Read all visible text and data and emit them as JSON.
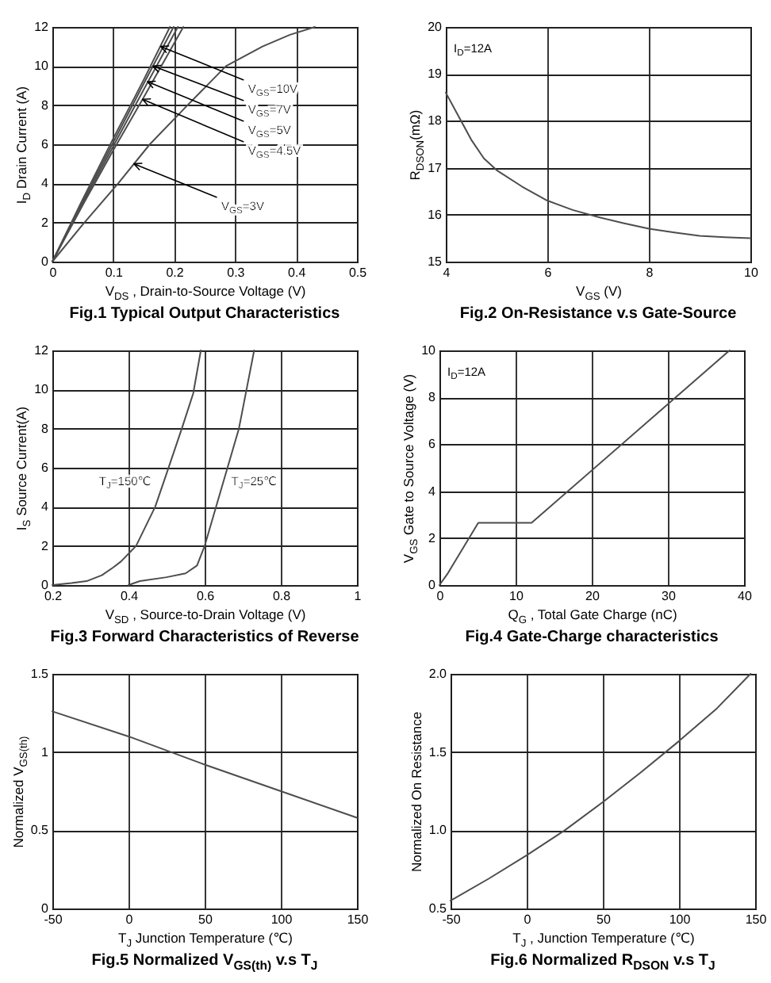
{
  "chart_data": [
    {
      "type": "line",
      "title": "Fig.1 Typical Output Characteristics",
      "xlabel": "V$_{DS}$ , Drain-to-Source Voltage (V)",
      "ylabel": "I$_{D}$ Drain Current (A)",
      "xlim": [
        0,
        0.5
      ],
      "xticks": [
        0,
        0.1,
        0.2,
        0.3,
        0.4,
        0.5
      ],
      "ylim": [
        0,
        12
      ],
      "yticks": [
        0,
        2,
        4,
        6,
        8,
        10,
        12
      ],
      "grid": true,
      "series": [
        {
          "color": "#4d4d4d",
          "x": [
            0,
            0.05,
            0.1,
            0.15,
            0.193
          ],
          "values": [
            0,
            3.2,
            6.3,
            9.3,
            12
          ]
        },
        {
          "color": "#4d4d4d",
          "x": [
            0,
            0.05,
            0.1,
            0.15,
            0.199
          ],
          "values": [
            0,
            3.1,
            6.1,
            9.1,
            12
          ]
        },
        {
          "color": "#4d4d4d",
          "x": [
            0,
            0.05,
            0.1,
            0.15,
            0.206
          ],
          "values": [
            0,
            3.0,
            5.9,
            8.8,
            12
          ]
        },
        {
          "color": "#4d4d4d",
          "x": [
            0,
            0.05,
            0.1,
            0.15,
            0.215
          ],
          "values": [
            0,
            2.9,
            5.7,
            8.4,
            12
          ]
        },
        {
          "color": "#4d4d4d",
          "x": [
            0,
            0.05,
            0.108,
            0.16,
            0.222,
            0.285,
            0.345,
            0.39,
            0.431
          ],
          "values": [
            0,
            1.9,
            4,
            6,
            8,
            10,
            11,
            11.6,
            12
          ]
        }
      ],
      "annotations": [
        {
          "text": "V$_{GS}$=10V",
          "x": 0.178,
          "y": 11
        },
        {
          "text": "V$_{GS}$=7V",
          "x": 0.165,
          "y": 10
        },
        {
          "text": "V$_{GS}$=5V",
          "x": 0.156,
          "y": 9.2
        },
        {
          "text": "V$_{GS}$=4.5V",
          "x": 0.148,
          "y": 8.3
        },
        {
          "text": "V$_{GS}$=3V",
          "x": 0.134,
          "y": 5
        }
      ]
    },
    {
      "type": "line",
      "title": "Fig.2 On-Resistance v.s Gate-Source",
      "xlabel": "V$_{GS}$ (V)",
      "ylabel": "R$_{DSON}$(mΩ)",
      "xlim": [
        4,
        10
      ],
      "xticks": [
        4,
        6,
        8,
        10
      ],
      "ylim": [
        15,
        20
      ],
      "yticks": [
        15,
        16,
        17,
        18,
        19,
        20
      ],
      "grid": true,
      "series": [
        {
          "color": "#4d4d4d",
          "x": [
            4,
            4.25,
            4.5,
            4.75,
            5,
            5.5,
            6,
            6.5,
            7,
            7.5,
            8,
            8.5,
            9,
            9.5,
            10
          ],
          "values": [
            18.6,
            18.1,
            17.6,
            17.2,
            16.95,
            16.6,
            16.3,
            16.1,
            15.95,
            15.82,
            15.7,
            15.62,
            15.55,
            15.52,
            15.5
          ]
        }
      ],
      "annotations": [
        "I$_{D}$=12A"
      ]
    },
    {
      "type": "line",
      "title": "Fig.3 Forward Characteristics of Reverse",
      "xlabel": "V$_{SD}$ , Source-to-Drain Voltage (V)",
      "ylabel": "I$_{S}$ Source Current(A)",
      "xlim": [
        0.2,
        1
      ],
      "xticks": [
        0.2,
        0.4,
        0.6,
        0.8,
        1
      ],
      "ylim": [
        0,
        12
      ],
      "yticks": [
        0,
        2,
        4,
        6,
        8,
        10,
        12
      ],
      "grid": true,
      "series": [
        {
          "name": "T$_{J}$=150℃",
          "color": "#4d4d4d",
          "x": [
            0.2,
            0.25,
            0.29,
            0.33,
            0.36,
            0.38,
            0.4,
            0.42,
            0.44,
            0.47,
            0.5,
            0.54,
            0.57,
            0.59
          ],
          "values": [
            0,
            0.1,
            0.2,
            0.5,
            0.9,
            1.2,
            1.6,
            2.0,
            2.8,
            4.0,
            5.7,
            8.0,
            9.8,
            12
          ]
        },
        {
          "name": "T$_{J}$=25℃",
          "color": "#4d4d4d",
          "x": [
            0.4,
            0.43,
            0.5,
            0.55,
            0.58,
            0.6,
            0.63,
            0.66,
            0.69,
            0.71,
            0.73
          ],
          "values": [
            0,
            0.2,
            0.4,
            0.6,
            1.0,
            2,
            4,
            6,
            8,
            10,
            12
          ]
        }
      ]
    },
    {
      "type": "line",
      "title": "Fig.4 Gate-Charge characteristics",
      "xlabel": "Q$_{G}$ , Total Gate Charge (nC)",
      "ylabel": "V$_{GS}$  Gate to Source Voltage (V)",
      "xlim": [
        0,
        40
      ],
      "xticks": [
        0,
        10,
        20,
        30,
        40
      ],
      "ylim": [
        0,
        10
      ],
      "yticks": [
        0,
        2,
        4,
        6,
        8,
        10
      ],
      "grid": true,
      "series": [
        {
          "color": "#4d4d4d",
          "x": [
            0,
            1,
            5.1,
            12.1,
            38.1
          ],
          "values": [
            0,
            0.45,
            2.65,
            2.65,
            10
          ]
        }
      ],
      "annotations": [
        "I$_{D}$=12A"
      ]
    },
    {
      "type": "line",
      "title": "Fig.5 Normalized V$_{GS(th)}$ v.s T$_{J}$",
      "xlabel": "T$_{J}$ Junction Temperature (℃)",
      "ylabel": "Normalized V$_{GS(th)}$",
      "xlim": [
        -50,
        150
      ],
      "xticks": [
        -50,
        0,
        50,
        100,
        150
      ],
      "ylim": [
        0,
        1.5
      ],
      "yticks": [
        0,
        0.5,
        1,
        1.5
      ],
      "grid": true,
      "series": [
        {
          "color": "#4d4d4d",
          "x": [
            -50,
            0,
            50,
            100,
            150
          ],
          "values": [
            1.26,
            1.1,
            0.92,
            0.75,
            0.58
          ]
        }
      ]
    },
    {
      "type": "line",
      "title": "Fig.6 Normalized R$_{DSON}$ v.s T$_{J}$",
      "xlabel": "T$_{J}$ , Junction Temperature (℃)",
      "ylabel": "Normalized On Resistance",
      "xlim": [
        -50,
        150
      ],
      "xticks": [
        -50,
        0,
        50,
        100,
        150
      ],
      "ylim": [
        0.5,
        2
      ],
      "yticks": [
        0.5,
        {
          "value": 1,
          "label": "1.0"
        },
        1.5,
        {
          "value": 2,
          "label": "2.0"
        }
      ],
      "grid": true,
      "series": [
        {
          "color": "#4d4d4d",
          "x": [
            -50,
            -25,
            0,
            25,
            50,
            75,
            100,
            125,
            147
          ],
          "values": [
            0.55,
            0.69,
            0.84,
            1.0,
            1.18,
            1.37,
            1.57,
            1.78,
            2.0
          ]
        }
      ]
    }
  ]
}
